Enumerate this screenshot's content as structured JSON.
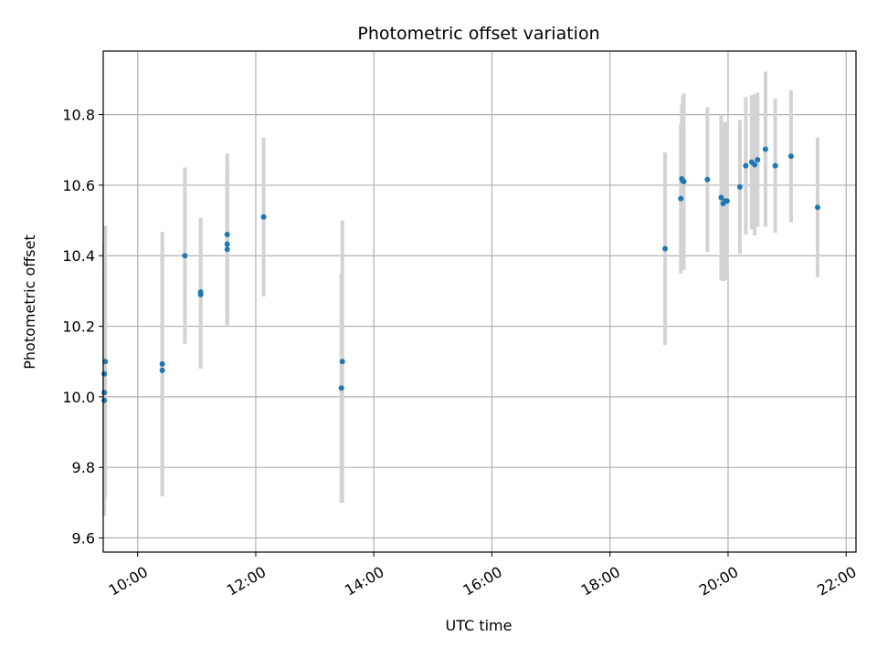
{
  "chart_data": {
    "type": "scatter",
    "title": "Photometric offset variation",
    "xlabel": "UTC time",
    "ylabel": "Photometric offset",
    "x_tick_labels": [
      "10:00",
      "12:00",
      "14:00",
      "16:00",
      "18:00",
      "20:00",
      "22:00"
    ],
    "y_tick_labels": [
      "9.6",
      "9.8",
      "10.0",
      "10.2",
      "10.4",
      "10.6",
      "10.8"
    ],
    "xlim": [
      "09:25",
      "22:10"
    ],
    "ylim": [
      9.56,
      10.98
    ],
    "grid": true,
    "colors": {
      "points": "#1f77b4",
      "errorbars": "#d3d3d3",
      "grid": "#b0b0b0"
    },
    "series": [
      {
        "points": [
          {
            "x": "09:26",
            "y": 9.99,
            "err": 0.3
          },
          {
            "x": "09:26",
            "y": 10.012,
            "err": 0.35
          },
          {
            "x": "09:26",
            "y": 10.065,
            "err": 0.37
          },
          {
            "x": "09:27",
            "y": 10.1,
            "err": 0.385
          },
          {
            "x": "10:25",
            "y": 10.075,
            "err": 0.355
          },
          {
            "x": "10:25",
            "y": 10.093,
            "err": 0.375
          },
          {
            "x": "10:48",
            "y": 10.4,
            "err": 0.25
          },
          {
            "x": "11:04",
            "y": 10.29,
            "err": 0.21
          },
          {
            "x": "11:04",
            "y": 10.297,
            "err": 0.21
          },
          {
            "x": "11:31",
            "y": 10.418,
            "err": 0.22
          },
          {
            "x": "11:31",
            "y": 10.433,
            "err": 0.23
          },
          {
            "x": "11:31",
            "y": 10.46,
            "err": 0.23
          },
          {
            "x": "12:08",
            "y": 10.51,
            "err": 0.225
          },
          {
            "x": "13:27",
            "y": 10.025,
            "err": 0.325
          },
          {
            "x": "13:28",
            "y": 10.1,
            "err": 0.4
          },
          {
            "x": "18:56",
            "y": 10.42,
            "err": 0.273
          },
          {
            "x": "19:12",
            "y": 10.562,
            "err": 0.212
          },
          {
            "x": "19:13",
            "y": 10.618,
            "err": 0.21
          },
          {
            "x": "19:14",
            "y": 10.612,
            "err": 0.24
          },
          {
            "x": "19:15",
            "y": 10.61,
            "err": 0.25
          },
          {
            "x": "19:39",
            "y": 10.616,
            "err": 0.205
          },
          {
            "x": "19:53",
            "y": 10.565,
            "err": 0.235
          },
          {
            "x": "19:55",
            "y": 10.548,
            "err": 0.22
          },
          {
            "x": "19:57",
            "y": 10.555,
            "err": 0.225
          },
          {
            "x": "19:59",
            "y": 10.555,
            "err": 0.22
          },
          {
            "x": "20:12",
            "y": 10.595,
            "err": 0.19
          },
          {
            "x": "20:18",
            "y": 10.655,
            "err": 0.195
          },
          {
            "x": "20:24",
            "y": 10.665,
            "err": 0.19
          },
          {
            "x": "20:27",
            "y": 10.658,
            "err": 0.2
          },
          {
            "x": "20:30",
            "y": 10.672,
            "err": 0.19
          },
          {
            "x": "20:38",
            "y": 10.702,
            "err": 0.22
          },
          {
            "x": "20:48",
            "y": 10.655,
            "err": 0.19
          },
          {
            "x": "21:04",
            "y": 10.682,
            "err": 0.187
          },
          {
            "x": "21:31",
            "y": 10.537,
            "err": 0.198
          }
        ]
      }
    ]
  }
}
